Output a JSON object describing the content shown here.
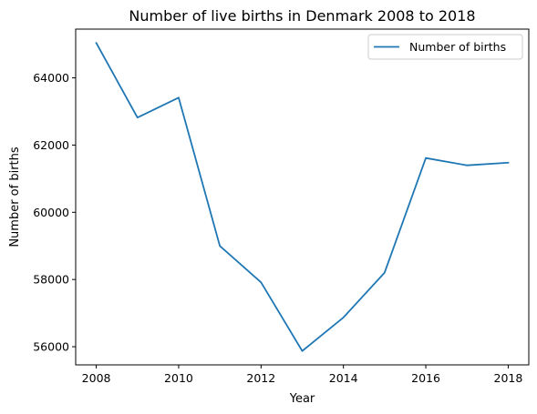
{
  "chart_data": {
    "type": "line",
    "title": "Number of live births in Denmark 2008 to 2018",
    "xlabel": "Year",
    "ylabel": "Number of births",
    "x": [
      2008,
      2009,
      2010,
      2011,
      2012,
      2013,
      2014,
      2015,
      2016,
      2017,
      2018
    ],
    "series": [
      {
        "name": "Number of births",
        "color": "#1f77b4",
        "values": [
          65038,
          62818,
          63411,
          58998,
          57916,
          55873,
          56870,
          58205,
          61614,
          61397,
          61476
        ]
      }
    ],
    "xlim": [
      2007.5,
      2018.5
    ],
    "ylim": [
      55460,
      65450
    ],
    "xticks": [
      2008,
      2010,
      2012,
      2014,
      2016,
      2018
    ],
    "yticks": [
      56000,
      58000,
      60000,
      62000,
      64000
    ],
    "legend": {
      "position": "top-right",
      "entries": [
        "Number of births"
      ]
    },
    "grid": false
  }
}
